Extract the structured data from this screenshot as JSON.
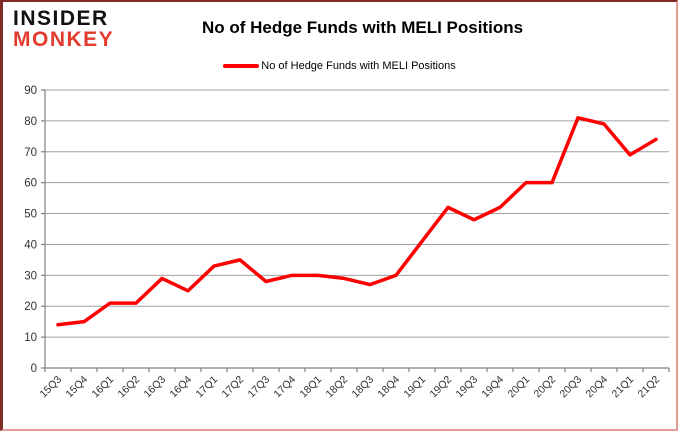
{
  "logo": {
    "line1": "INSIDER",
    "line2": "MONKEY"
  },
  "header": {
    "title": "No of Hedge Funds with MELI Positions"
  },
  "legend": {
    "label": "No of Hedge Funds with MELI Positions"
  },
  "colors": {
    "series_line": "#ff0000",
    "legend_marker": "#ff0000",
    "logo_black": "#111111",
    "logo_red": "#e23b2e",
    "gridline": "#a0a0a0",
    "axis": "#808080",
    "tick_label": "#333333",
    "frame_dark": "#7d2b24",
    "frame_light": "#e59c94"
  },
  "chart_data": {
    "type": "line",
    "title": "No of Hedge Funds with MELI Positions",
    "categories": [
      "15Q3",
      "15Q4",
      "16Q1",
      "16Q2",
      "16Q3",
      "16Q4",
      "17Q1",
      "17Q2",
      "17Q3",
      "17Q4",
      "18Q1",
      "18Q2",
      "18Q3",
      "18Q4",
      "19Q1",
      "19Q2",
      "19Q3",
      "19Q4",
      "20Q1",
      "20Q2",
      "20Q3",
      "20Q4",
      "21Q1",
      "21Q2"
    ],
    "series": [
      {
        "name": "No of Hedge Funds with MELI Positions",
        "color": "#ff0000",
        "values": [
          14,
          15,
          21,
          21,
          29,
          25,
          33,
          35,
          28,
          30,
          30,
          29,
          27,
          30,
          41,
          52,
          48,
          52,
          60,
          60,
          81,
          79,
          69,
          74
        ]
      }
    ],
    "xlabel": "",
    "ylabel": "",
    "ylim": [
      0,
      90
    ],
    "ytick_step": 10,
    "grid": true,
    "legend_position": "top-center"
  }
}
